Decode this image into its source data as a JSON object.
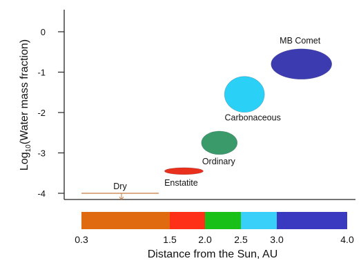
{
  "chart_data": {
    "type": "scatter",
    "title": "",
    "ylabel_prefix": "Log",
    "ylabel_subscript": "10",
    "ylabel_suffix": "(Water mass fraction)",
    "xlabel": "Distance from the Sun, AU",
    "yticks": [
      0,
      -1,
      -2,
      -3,
      -4
    ],
    "ylim": [
      -4.2,
      0.45
    ],
    "points": [
      {
        "name": "Enstatite",
        "x": 1.7,
        "y": -3.45,
        "color": "#e8301c"
      },
      {
        "name": "Ordinary",
        "x": 2.2,
        "y": -2.75,
        "color": "#3a9a6a"
      },
      {
        "name": "Carbonaceous",
        "x": 2.55,
        "y": -1.55,
        "color": "#2ad0f5"
      },
      {
        "name": "MB Comet",
        "x": 3.35,
        "y": -0.8,
        "color": "#3c3cb0"
      }
    ],
    "dry_marker": {
      "label": "Dry",
      "y": -4.0,
      "x_range": [
        0.3,
        1.5
      ],
      "color": "#c87a40"
    },
    "distance_scale": {
      "ticks": [
        "0.3",
        "1.5",
        "2.0",
        "2.5",
        "3.0",
        "4.0"
      ],
      "segments": [
        {
          "from": "0.3",
          "to": "1.5",
          "color": "#e06a10"
        },
        {
          "from": "1.5",
          "to": "2.0",
          "color": "#ff3018"
        },
        {
          "from": "2.0",
          "to": "2.5",
          "color": "#18c018"
        },
        {
          "from": "2.5",
          "to": "3.0",
          "color": "#38d0f8"
        },
        {
          "from": "3.0",
          "to": "4.0",
          "color": "#3a3ac0"
        }
      ]
    }
  }
}
